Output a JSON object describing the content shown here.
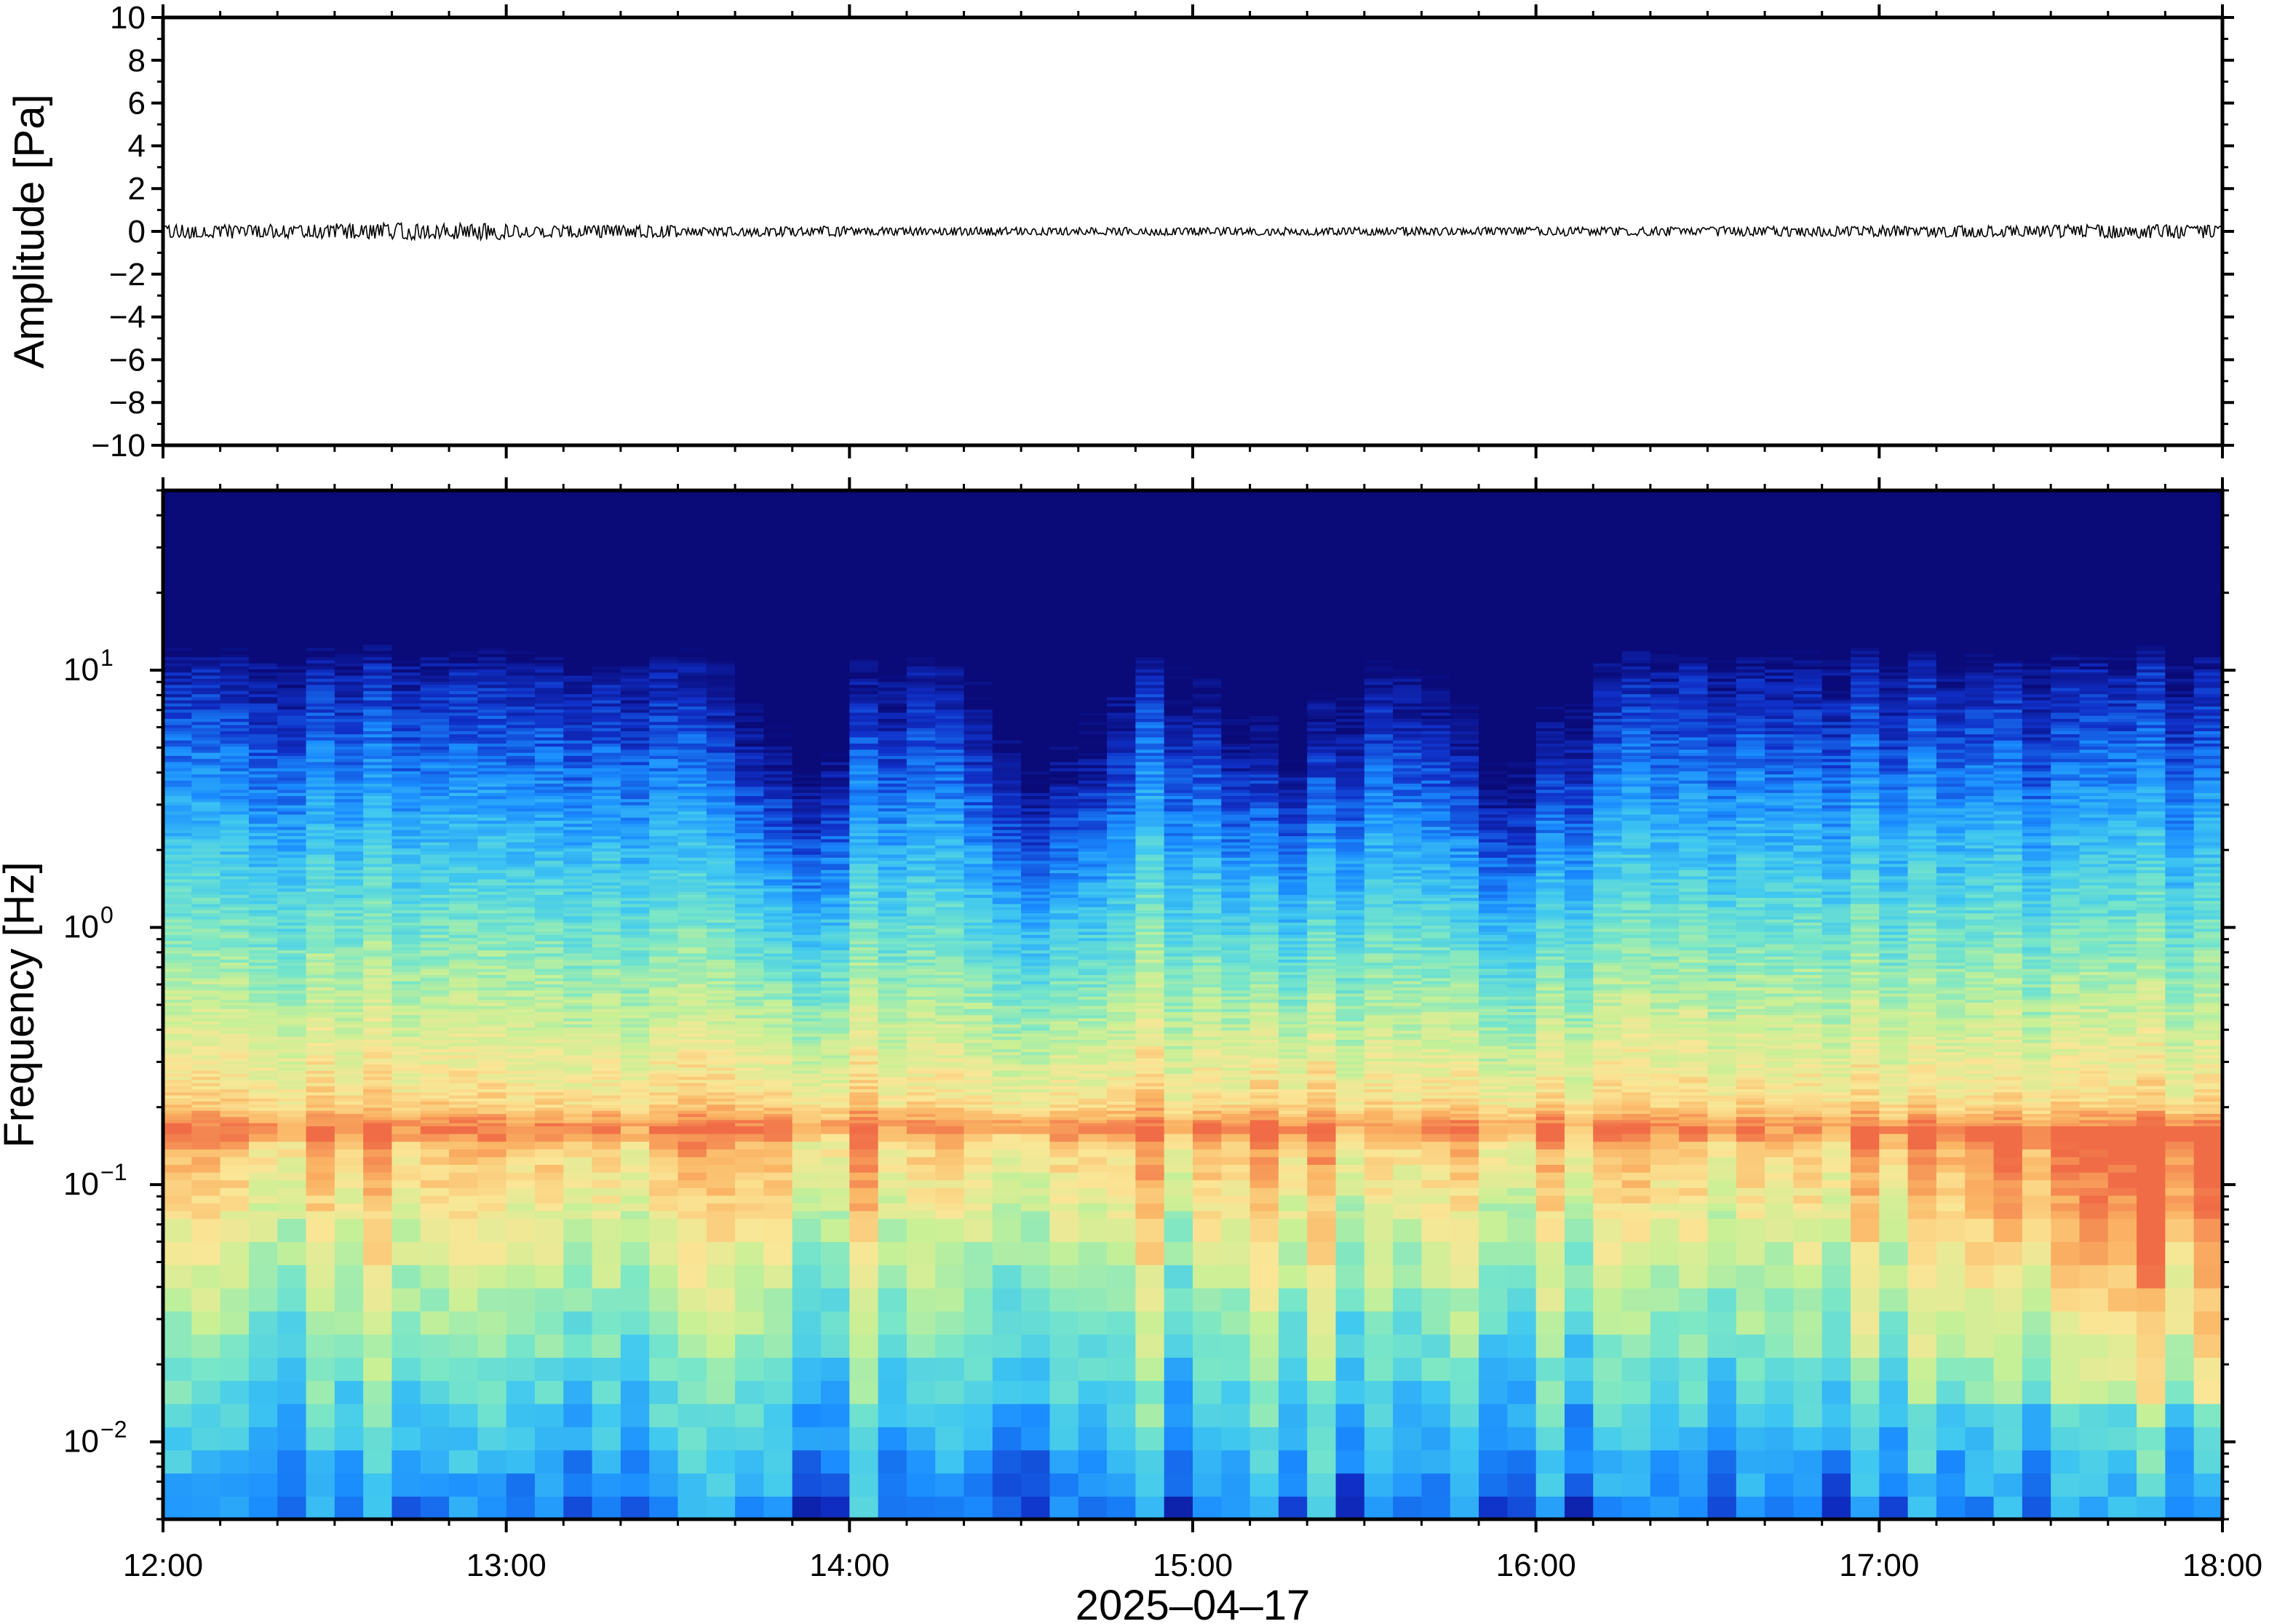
{
  "figure": {
    "date_label": "2025–04–17"
  },
  "chart_data": [
    {
      "type": "line",
      "name": "waveform",
      "title": "",
      "xlabel": "",
      "ylabel": "Amplitude [Pa]",
      "xlim": [
        "12:00",
        "18:00"
      ],
      "ylim": [
        -10,
        10
      ],
      "yticks": [
        "−10",
        "−8",
        "−6",
        "−4",
        "−2",
        "0",
        "2",
        "4",
        "6",
        "8",
        "10"
      ],
      "yticks_values": [
        -10,
        -8,
        -6,
        -4,
        -2,
        0,
        2,
        4,
        6,
        8,
        10
      ],
      "series": [
        {
          "color": "#000000",
          "description_values": "noise trace centered on 0 Pa",
          "amplitude_envelope_pa": [
            0.25,
            0.3,
            0.22,
            0.18,
            0.15,
            0.14,
            0.14,
            0.15,
            0.16,
            0.18,
            0.2,
            0.24
          ]
        }
      ],
      "grid": false
    },
    {
      "type": "heatmap",
      "name": "spectrogram",
      "title": "",
      "xlabel": "2025–04–17",
      "ylabel": "Frequency [Hz]",
      "xticks": [
        "12:00",
        "13:00",
        "14:00",
        "15:00",
        "16:00",
        "17:00",
        "18:00"
      ],
      "xlim": [
        "12:00",
        "18:00"
      ],
      "yscale": "log",
      "ylim": [
        0.005,
        50
      ],
      "yticks": [
        {
          "base": "10",
          "exp": "−2",
          "value": 0.01
        },
        {
          "base": "10",
          "exp": "−1",
          "value": 0.1
        },
        {
          "base": "10",
          "exp": "0",
          "value": 1
        },
        {
          "base": "10",
          "exp": "1",
          "value": 10
        }
      ],
      "colormap": [
        "#0a0a78",
        "#1030c8",
        "#1a8cff",
        "#40c8f0",
        "#78e6c8",
        "#c8f096",
        "#fae696",
        "#fab464",
        "#f06c46"
      ],
      "dominant_band_hz": 0.17,
      "quiet_high_freq_dips": [
        "13:50",
        "14:35",
        "15:15",
        "15:55"
      ],
      "grid": false
    }
  ]
}
